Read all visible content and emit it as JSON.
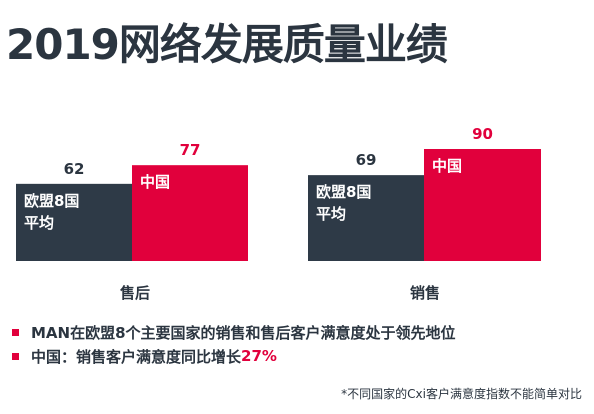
{
  "title": "2019网络发展质量业绩",
  "colors": {
    "europe": "#2e3a47",
    "china": "#e1003c",
    "text_dark": "#2b3540"
  },
  "chart_data": {
    "type": "bar",
    "categories": [
      "售后",
      "销售"
    ],
    "series": [
      {
        "name": "欧盟8国平均",
        "values": [
          62,
          69
        ]
      },
      {
        "name": "中国",
        "values": [
          77,
          90
        ]
      }
    ],
    "ylim": [
      0,
      100
    ],
    "grid": false
  },
  "bullets": [
    {
      "text": "MAN在欧盟8个主要国家的销售和售后客户满意度处于领先地位",
      "highlight": ""
    },
    {
      "text": "中国：销售客户满意度同比增长",
      "highlight": "27%"
    }
  ],
  "footnote": "*不同国家的Cxi客户满意度指数不能简单对比"
}
